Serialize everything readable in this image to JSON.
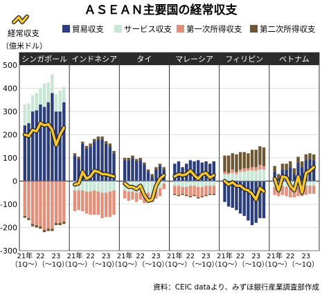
{
  "chart_data": {
    "type": "bar",
    "title": "ＡＳＥＡＮ主要国の経常収支",
    "ylabel": "（億米ドル）",
    "ylim": [
      -300,
      500
    ],
    "yticks": [
      -300,
      -200,
      -100,
      0,
      100,
      200,
      300,
      400,
      500
    ],
    "legend": {
      "placement": "top",
      "line_label": "経常収支",
      "items": [
        {
          "label": "貿易収支",
          "color": "#2b3d7a"
        },
        {
          "label": "サービス収支",
          "color": "#c8e6d6"
        },
        {
          "label": "第一次所得収支",
          "color": "#e2907a"
        },
        {
          "label": "第二次所得収支",
          "color": "#6e5632"
        }
      ]
    },
    "line_color": "#f3c530",
    "xtick_labels": [
      [
        "21年",
        "（1Q～）"
      ],
      [
        "22",
        ""
      ],
      [
        "23",
        "（～1Q）"
      ]
    ],
    "source": "資料：CEIC dataより、みずほ銀行産業調査部作成",
    "panels": [
      {
        "name": "シンガポール",
        "series": {
          "trade": [
            240,
            250,
            300,
            305,
            330,
            320,
            340,
            380,
            300,
            300,
            340
          ],
          "services": [
            90,
            85,
            70,
            75,
            70,
            100,
            85,
            80,
            75,
            90,
            65
          ],
          "primary": [
            -150,
            -160,
            -185,
            -190,
            -195,
            -210,
            -205,
            -205,
            -180,
            -180,
            -175
          ],
          "secondary": [
            -8,
            -8,
            -10,
            -10,
            -10,
            -10,
            -10,
            -10,
            -10,
            -10,
            -10
          ],
          "current": [
            200,
            195,
            220,
            215,
            250,
            240,
            245,
            220,
            155,
            200,
            230
          ]
        }
      },
      {
        "name": "インドネシア",
        "series": {
          "trade": [
            110,
            95,
            160,
            140,
            150,
            170,
            180,
            180,
            160,
            150,
            120
          ],
          "services": [
            -40,
            -40,
            -40,
            -45,
            -45,
            -40,
            -45,
            -50,
            -50,
            -45,
            -40
          ],
          "primary": [
            -90,
            -85,
            -90,
            -95,
            -100,
            -105,
            -100,
            -110,
            -105,
            -110,
            -105
          ],
          "secondary": [
            10,
            10,
            10,
            12,
            12,
            12,
            12,
            12,
            12,
            12,
            10
          ],
          "current": [
            -15,
            -10,
            40,
            10,
            20,
            45,
            40,
            30,
            30,
            25,
            20
          ]
        }
      },
      {
        "name": "タイ",
        "series": {
          "trade": [
            90,
            90,
            100,
            85,
            90,
            70,
            40,
            20,
            50,
            65,
            50
          ],
          "services": [
            -40,
            -45,
            -45,
            -50,
            -45,
            -50,
            -50,
            -60,
            -40,
            -30,
            -10
          ],
          "primary": [
            -35,
            -40,
            -35,
            -40,
            -35,
            -45,
            -40,
            -30,
            -35,
            -35,
            -25
          ],
          "secondary": [
            10,
            10,
            10,
            10,
            10,
            10,
            10,
            10,
            10,
            10,
            10
          ],
          "current": [
            -10,
            -25,
            -25,
            -35,
            -20,
            -60,
            -85,
            -80,
            -20,
            10,
            25
          ]
        }
      },
      {
        "name": "マレーシア",
        "series": {
          "trade": [
            75,
            85,
            60,
            75,
            90,
            85,
            90,
            80,
            85,
            75,
            85
          ],
          "services": [
            -20,
            -20,
            -25,
            -25,
            -20,
            -20,
            -25,
            -25,
            -20,
            -20,
            -20
          ],
          "primary": [
            -35,
            -40,
            -30,
            -35,
            -45,
            -40,
            -45,
            -40,
            -40,
            -35,
            -35
          ],
          "secondary": [
            -5,
            -5,
            -5,
            -5,
            -5,
            -5,
            -5,
            -5,
            -5,
            -5,
            -5
          ],
          "current": [
            20,
            30,
            25,
            30,
            45,
            25,
            10,
            30,
            35,
            15,
            25
          ]
        }
      },
      {
        "name": "フィリピン",
        "series": {
          "trade": [
            -90,
            -110,
            -115,
            -125,
            -140,
            -150,
            -170,
            -190,
            -180,
            -160,
            -160
          ],
          "services": [
            30,
            30,
            35,
            30,
            40,
            40,
            45,
            45,
            45,
            50,
            50
          ],
          "primary": [
            10,
            5,
            15,
            10,
            10,
            15,
            10,
            15,
            15,
            20,
            15
          ],
          "secondary": [
            70,
            75,
            70,
            75,
            75,
            70,
            65,
            75,
            75,
            80,
            80
          ],
          "current": [
            0,
            -15,
            -5,
            -20,
            -20,
            -35,
            -40,
            -55,
            -80,
            -30,
            -45
          ]
        }
      },
      {
        "name": "ベトナム",
        "series": {
          "trade": [
            40,
            10,
            50,
            50,
            60,
            30,
            80,
            60,
            90,
            95,
            90
          ],
          "services": [
            -25,
            -25,
            -20,
            -25,
            -30,
            -25,
            -25,
            -20,
            -20,
            -20,
            -20
          ],
          "primary": [
            -35,
            -40,
            -40,
            -40,
            -40,
            -45,
            -40,
            -45,
            -40,
            -35,
            -35
          ],
          "secondary": [
            25,
            20,
            25,
            25,
            25,
            25,
            25,
            25,
            25,
            25,
            25
          ],
          "current": [
            10,
            -40,
            20,
            15,
            -20,
            -40,
            20,
            -50,
            35,
            45,
            60
          ]
        }
      }
    ]
  }
}
